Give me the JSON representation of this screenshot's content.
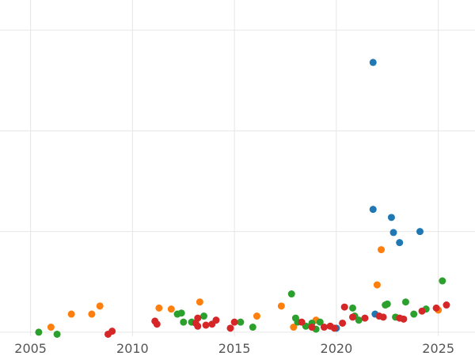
{
  "chart_data": {
    "type": "scatter",
    "title": "",
    "xlabel": "",
    "ylabel": "",
    "xlim": [
      2003.5,
      2026.8
    ],
    "ylim": [
      -4,
      330
    ],
    "x_ticks": [
      2005,
      2010,
      2015,
      2020,
      2025
    ],
    "x_tick_labels": [
      "2005",
      "2010",
      "2015",
      "2020",
      "2025"
    ],
    "y_gridlines": [
      0,
      100,
      200,
      300
    ],
    "grid": true,
    "legend": "none",
    "series": [
      {
        "color": "#1f77b4",
        "points": [
          [
            2021.8,
            268
          ],
          [
            2021.8,
            122
          ],
          [
            2022.7,
            114
          ],
          [
            2022.8,
            99
          ],
          [
            2023.1,
            89
          ],
          [
            2024.1,
            100
          ],
          [
            2021.9,
            18
          ],
          [
            2020.0,
            4
          ]
        ]
      },
      {
        "color": "#ff7f0e",
        "points": [
          [
            2006.0,
            5
          ],
          [
            2007.0,
            18
          ],
          [
            2008.0,
            18
          ],
          [
            2008.4,
            26
          ],
          [
            2011.3,
            24
          ],
          [
            2011.9,
            23
          ],
          [
            2013.3,
            30
          ],
          [
            2016.1,
            16
          ],
          [
            2017.3,
            26
          ],
          [
            2017.9,
            5
          ],
          [
            2019.0,
            12
          ],
          [
            2022.0,
            47
          ],
          [
            2022.2,
            82
          ],
          [
            2025.0,
            22
          ]
        ]
      },
      {
        "color": "#2ca02c",
        "points": [
          [
            2005.4,
            0
          ],
          [
            2006.3,
            -2
          ],
          [
            2012.2,
            18
          ],
          [
            2012.4,
            19
          ],
          [
            2012.5,
            10
          ],
          [
            2012.9,
            10
          ],
          [
            2013.5,
            16
          ],
          [
            2015.3,
            10
          ],
          [
            2015.9,
            5
          ],
          [
            2017.8,
            38
          ],
          [
            2018.0,
            14
          ],
          [
            2018.1,
            10
          ],
          [
            2018.5,
            6
          ],
          [
            2018.8,
            9
          ],
          [
            2019.0,
            3
          ],
          [
            2019.2,
            10
          ],
          [
            2020.8,
            24
          ],
          [
            2020.9,
            16
          ],
          [
            2021.1,
            12
          ],
          [
            2022.4,
            27
          ],
          [
            2022.5,
            28
          ],
          [
            2022.9,
            15
          ],
          [
            2023.4,
            30
          ],
          [
            2023.8,
            18
          ],
          [
            2024.4,
            23
          ],
          [
            2025.2,
            51
          ]
        ]
      },
      {
        "color": "#d62728",
        "points": [
          [
            2008.8,
            -2
          ],
          [
            2009.0,
            1
          ],
          [
            2011.1,
            11
          ],
          [
            2011.2,
            8
          ],
          [
            2013.1,
            9
          ],
          [
            2013.2,
            6
          ],
          [
            2013.2,
            14
          ],
          [
            2013.6,
            7
          ],
          [
            2013.9,
            8
          ],
          [
            2014.1,
            12
          ],
          [
            2014.8,
            4
          ],
          [
            2015.0,
            10
          ],
          [
            2018.3,
            10
          ],
          [
            2018.8,
            5
          ],
          [
            2019.4,
            5
          ],
          [
            2019.7,
            6
          ],
          [
            2019.9,
            4
          ],
          [
            2020.3,
            9
          ],
          [
            2020.4,
            25
          ],
          [
            2020.8,
            15
          ],
          [
            2021.4,
            14
          ],
          [
            2022.1,
            16
          ],
          [
            2022.3,
            15
          ],
          [
            2023.1,
            14
          ],
          [
            2023.3,
            13
          ],
          [
            2024.2,
            21
          ],
          [
            2024.9,
            24
          ],
          [
            2025.4,
            27
          ]
        ]
      }
    ]
  }
}
